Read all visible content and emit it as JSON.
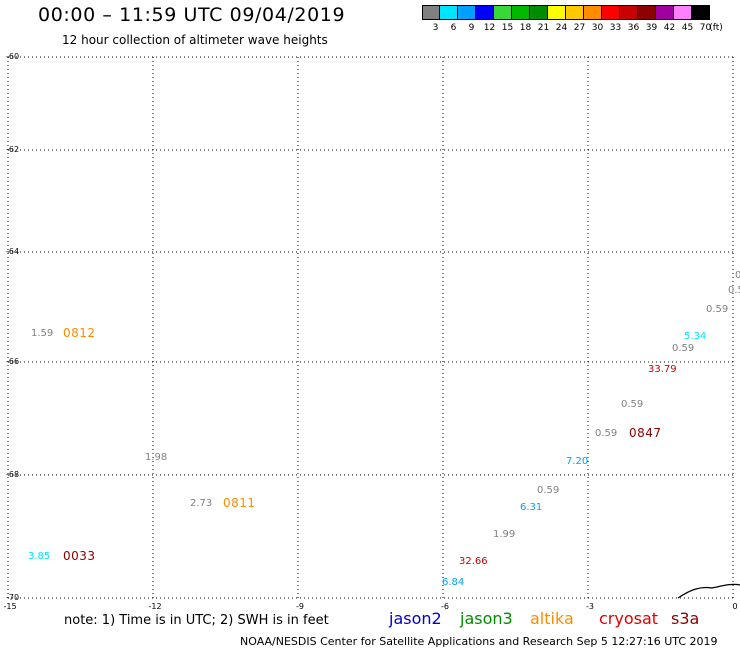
{
  "header": {
    "title": "00:00 – 11:59 UTC 09/04/2019",
    "subtitle": "12 hour collection of altimeter wave heights"
  },
  "colorbar": {
    "colors": [
      "#808080",
      "#00e5ff",
      "#00a0ff",
      "#0000ff",
      "#38d838",
      "#00b800",
      "#008c00",
      "#ffff00",
      "#ffc800",
      "#ff8c00",
      "#ff0000",
      "#c80000",
      "#8c0000",
      "#a000a0",
      "#ff80ff",
      "#000000"
    ],
    "labels": [
      "3",
      "6",
      "9",
      "12",
      "15",
      "18",
      "21",
      "24",
      "27",
      "30",
      "33",
      "36",
      "39",
      "42",
      "45",
      "70"
    ],
    "unit": "(ft)"
  },
  "axes": {
    "lat_labels": [
      "-60",
      "-62",
      "-64",
      "-66",
      "-68",
      "-70"
    ],
    "lon_labels": [
      "-15",
      "-12",
      "-9",
      "-6",
      "-3",
      "0"
    ]
  },
  "observations": [
    {
      "text": "1.59",
      "color": "#808080"
    },
    {
      "text": "1.98",
      "color": "#808080"
    },
    {
      "text": "2.73",
      "color": "#808080"
    },
    {
      "text": "3.85",
      "color": "#00e5ff"
    },
    {
      "text": "32.66",
      "color": "#c80000"
    },
    {
      "text": "6.84",
      "color": "#00a0ff"
    },
    {
      "text": "1.99",
      "color": "#808080"
    },
    {
      "text": "6.31",
      "color": "#00a0ff"
    },
    {
      "text": "0.59",
      "color": "#808080"
    },
    {
      "text": "7.20",
      "color": "#00a0ff"
    },
    {
      "text": "0.59",
      "color": "#808080"
    },
    {
      "text": "0.59",
      "color": "#808080"
    },
    {
      "text": "33.79",
      "color": "#c80000"
    },
    {
      "text": "0.59",
      "color": "#808080"
    },
    {
      "text": "5.34",
      "color": "#00e5ff"
    },
    {
      "text": "0.59",
      "color": "#808080"
    },
    {
      "text": "0.5",
      "color": "#808080"
    },
    {
      "text": "0",
      "color": "#808080"
    }
  ],
  "pass_times": [
    {
      "text": "0812",
      "color": "#ff8c00"
    },
    {
      "text": "0811",
      "color": "#ff8c00"
    },
    {
      "text": "0033",
      "color": "#8c0000"
    },
    {
      "text": "0847",
      "color": "#8c0000"
    }
  ],
  "footer": {
    "note": "note: 1) Time is in UTC; 2) SWH is in feet",
    "satellites": [
      {
        "name": "jason2",
        "color": "#0000cc"
      },
      {
        "name": "jason3",
        "color": "#008c00"
      },
      {
        "name": "altika",
        "color": "#ff8c00"
      },
      {
        "name": "cryosat",
        "color": "#e00000"
      },
      {
        "name": "s3a",
        "color": "#8c0000"
      }
    ],
    "credit": "NOAA/NESDIS Center for Satellite Applications and Research    Sep  5 12:27:16 UTC 2019"
  }
}
